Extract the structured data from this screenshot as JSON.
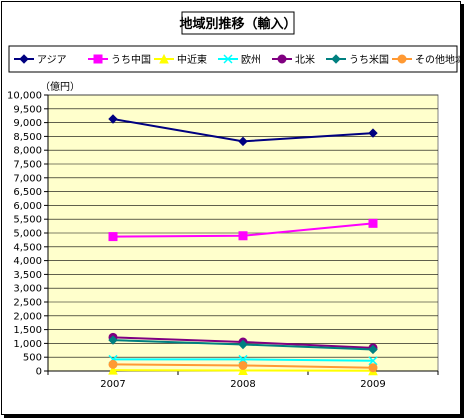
{
  "chart_data": {
    "type": "line",
    "title": "地域別推移（輸入）",
    "ylabel": "（億円）",
    "xlabel": "",
    "categories": [
      "2007",
      "2008",
      "2009"
    ],
    "ylim": [
      0,
      10000
    ],
    "ytick_step": 500,
    "grid": true,
    "legend_position": "top",
    "plot_background": "#ffffcc",
    "series": [
      {
        "name": "アジア",
        "values": [
          9130,
          8320,
          8620
        ],
        "color": "#000080",
        "marker": "diamond"
      },
      {
        "name": "うち中国",
        "values": [
          4870,
          4900,
          5350
        ],
        "color": "#ff00ff",
        "marker": "square"
      },
      {
        "name": "中近東",
        "values": [
          30,
          20,
          10
        ],
        "color": "#ffff00",
        "marker": "triangle"
      },
      {
        "name": "欧州",
        "values": [
          420,
          420,
          370
        ],
        "color": "#00ffff",
        "marker": "x"
      },
      {
        "name": "北米",
        "values": [
          1220,
          1050,
          840
        ],
        "color": "#800080",
        "marker": "circle"
      },
      {
        "name": "うち米国",
        "values": [
          1120,
          960,
          780
        ],
        "color": "#008080",
        "marker": "diamond"
      },
      {
        "name": "その他地域",
        "values": [
          240,
          200,
          120
        ],
        "color": "#ff9933",
        "marker": "circle"
      }
    ]
  }
}
